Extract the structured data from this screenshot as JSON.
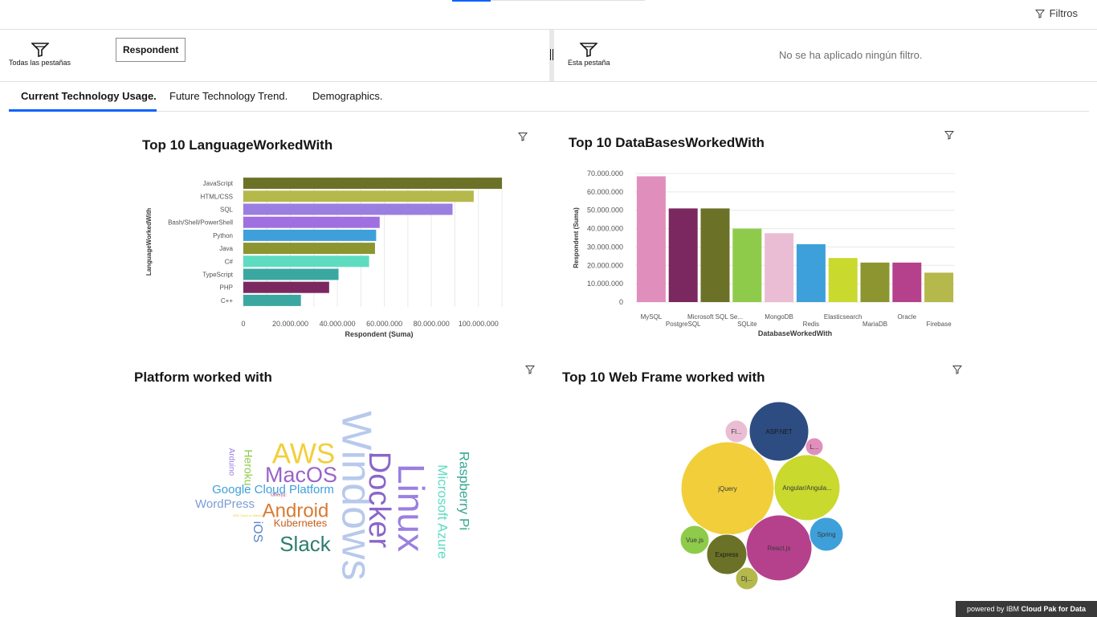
{
  "topbar": {
    "filters_label": "Filtros"
  },
  "filter_bar": {
    "all_tabs_label": "Todas las pestañas",
    "respondent_chip": "Respondent",
    "this_tab_label": "Esta pestaña",
    "no_filter_text": "No se ha aplicado ningún filtro."
  },
  "tabs": [
    {
      "label": "Current Technology Usage."
    },
    {
      "label": "Future Technology Trend."
    },
    {
      "label": "Demographics."
    }
  ],
  "widgets": {
    "languages": {
      "title": "Top 10  LanguageWorkedWith"
    },
    "databases": {
      "title": "Top 10 DataBasesWorkedWith"
    },
    "platforms": {
      "title": "Platform worked with"
    },
    "webframes": {
      "title": "Top 10 Web Frame worked with"
    }
  },
  "chart_data": [
    {
      "type": "bar",
      "orientation": "horizontal",
      "title": "Top 10  LanguageWorkedWith",
      "xlabel": "Respondent (Suma)",
      "ylabel": "LanguageWorkedWith",
      "categories": [
        "JavaScript",
        "HTML/CSS",
        "SQL",
        "Bash/Shell/PowerShell",
        "Python",
        "Java",
        "C#",
        "TypeScript",
        "PHP",
        "C++"
      ],
      "values": [
        110000000,
        98000000,
        89000000,
        58000000,
        56500000,
        56000000,
        53500000,
        40500000,
        36500000,
        24500000
      ],
      "colors": [
        "#6b7228",
        "#b5b84b",
        "#9b7fe0",
        "#a06fe0",
        "#3ea0da",
        "#8c9530",
        "#5edcc0",
        "#3aa8a0",
        "#7c2860",
        "#3aa8a0"
      ],
      "xlim": [
        0,
        110000000
      ],
      "xticks": [
        0,
        20000000,
        40000000,
        60000000,
        80000000,
        100000000
      ],
      "xtick_labels": [
        "0",
        "20.000.000",
        "40.000.000",
        "60.000.000",
        "80.000.000",
        "100.000.000"
      ]
    },
    {
      "type": "bar",
      "orientation": "vertical",
      "title": "Top 10 DataBasesWorkedWith",
      "xlabel": "DatabaseWorkedWith",
      "ylabel": "Respondent (Suma)",
      "categories": [
        "MySQL",
        "PostgreSQL",
        "Microsoft SQL Se...",
        "SQLite",
        "MongoDB",
        "Redis",
        "Elasticsearch",
        "MariaDB",
        "Oracle",
        "Firebase"
      ],
      "values": [
        68500000,
        51000000,
        51000000,
        40000000,
        37500000,
        31500000,
        24000000,
        21500000,
        21500000,
        16000000
      ],
      "colors": [
        "#e08fbd",
        "#7c2860",
        "#6b7228",
        "#8fcb4a",
        "#ebbdd5",
        "#3ea0da",
        "#c9d92e",
        "#8c9530",
        "#b5418c",
        "#b5b84b"
      ],
      "ylim": [
        0,
        70000000
      ],
      "yticks": [
        0,
        10000000,
        20000000,
        30000000,
        40000000,
        50000000,
        60000000,
        70000000
      ],
      "ytick_labels": [
        "0",
        "10.000.000",
        "20.000.000",
        "30.000.000",
        "40.000.000",
        "50.000.000",
        "60.000.000",
        "70.000.000"
      ]
    },
    {
      "type": "wordcloud",
      "title": "Platform worked with",
      "words": [
        {
          "text": "Windows",
          "color": "#b7c9ec"
        },
        {
          "text": "Linux",
          "color": "#9b7fe0"
        },
        {
          "text": "Docker",
          "color": "#8a66c9"
        },
        {
          "text": "AWS",
          "color": "#f2cf3a"
        },
        {
          "text": "MacOS",
          "color": "#9b62c7"
        },
        {
          "text": "Android",
          "color": "#d87b32"
        },
        {
          "text": "Slack",
          "color": "#2e7d6e"
        },
        {
          "text": "Microsoft Azure",
          "color": "#5edcc0"
        },
        {
          "text": "Raspberry Pi",
          "color": "#36a893"
        },
        {
          "text": "Google Cloud Platform",
          "color": "#3ea0da"
        },
        {
          "text": "WordPress",
          "color": "#7a9ed6"
        },
        {
          "text": "Kubernetes",
          "color": "#c75f1d"
        },
        {
          "text": "Heroku",
          "color": "#8fcb4a"
        },
        {
          "text": "iOS",
          "color": "#5b82c7"
        },
        {
          "text": "Arduino",
          "color": "#9b7fe0"
        },
        {
          "text": "Other(s):",
          "color": "#7c2860"
        },
        {
          "text": "IBM Cloud or Watson",
          "color": "#f2cf3a"
        }
      ]
    },
    {
      "type": "bubble",
      "title": "Top 10 Web Frame worked with",
      "bubbles": [
        {
          "label": "jQuery",
          "color": "#f2cf3a"
        },
        {
          "label": "React.js",
          "color": "#b5418c"
        },
        {
          "label": "Angular/Angula...",
          "color": "#c9d92e"
        },
        {
          "label": "ASP.NET",
          "color": "#2d4d82"
        },
        {
          "label": "Express",
          "color": "#6b7228"
        },
        {
          "label": "Spring",
          "color": "#3ea0da"
        },
        {
          "label": "Vue.js",
          "color": "#8fcb4a"
        },
        {
          "label": "Fl...",
          "color": "#ebbdd5"
        },
        {
          "label": "Dj...",
          "color": "#b5b84b"
        },
        {
          "label": "L...",
          "color": "#e08fbd"
        }
      ]
    }
  ],
  "footer": {
    "powered_by": "powered by IBM",
    "product": "Cloud Pak for Data"
  }
}
